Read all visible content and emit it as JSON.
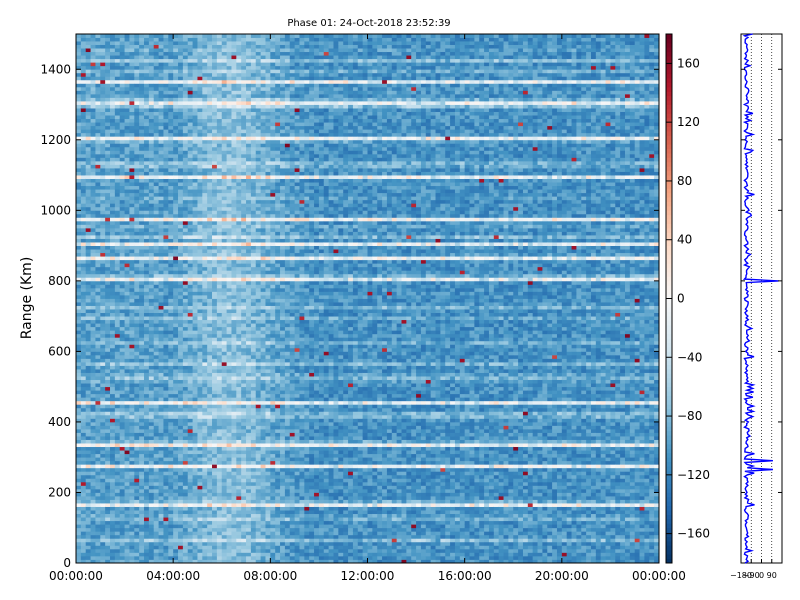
{
  "chart_data": [
    {
      "type": "heatmap",
      "title": "Phase 01: 24-Oct-2018 23:52:39",
      "xlabel": "",
      "ylabel": "Range (Km)",
      "x_ticks": [
        "00:00:00",
        "04:00:00",
        "08:00:00",
        "12:00:00",
        "16:00:00",
        "20:00:00",
        "00:00:00"
      ],
      "x_range": [
        "00:00:00",
        "24:00:00"
      ],
      "y_ticks": [
        0,
        200,
        400,
        600,
        800,
        1000,
        1200,
        1400
      ],
      "ylim": [
        0,
        1500
      ],
      "colormap": "RdBu_r",
      "colorbar": {
        "vmin": -180,
        "vmax": 180,
        "ticks": [
          160,
          120,
          80,
          40,
          0,
          -40,
          -80,
          -120,
          -160
        ],
        "tick_labels": [
          "160",
          "120",
          "80",
          "40",
          "0",
          "−40",
          "−80",
          "−120",
          "−160"
        ]
      },
      "typical_value": -110,
      "saturated_ranges_km": [
        1362,
        1300,
        1205,
        1095,
        975,
        900,
        860,
        800,
        455,
        330,
        270,
        165
      ],
      "lighter_time_band": [
        "04:00:00",
        "09:00:00"
      ],
      "grid": false,
      "legend": "none"
    },
    {
      "type": "line",
      "series_color": "#0000ff",
      "x_tick_labels": [
        "−180",
        "−90",
        "0",
        "90"
      ],
      "xlim": [
        -180,
        180
      ],
      "ylim": [
        0,
        1500
      ],
      "spikes_km": [
        265,
        292,
        800
      ],
      "grid": "dotted-vertical",
      "legend": "none"
    }
  ]
}
